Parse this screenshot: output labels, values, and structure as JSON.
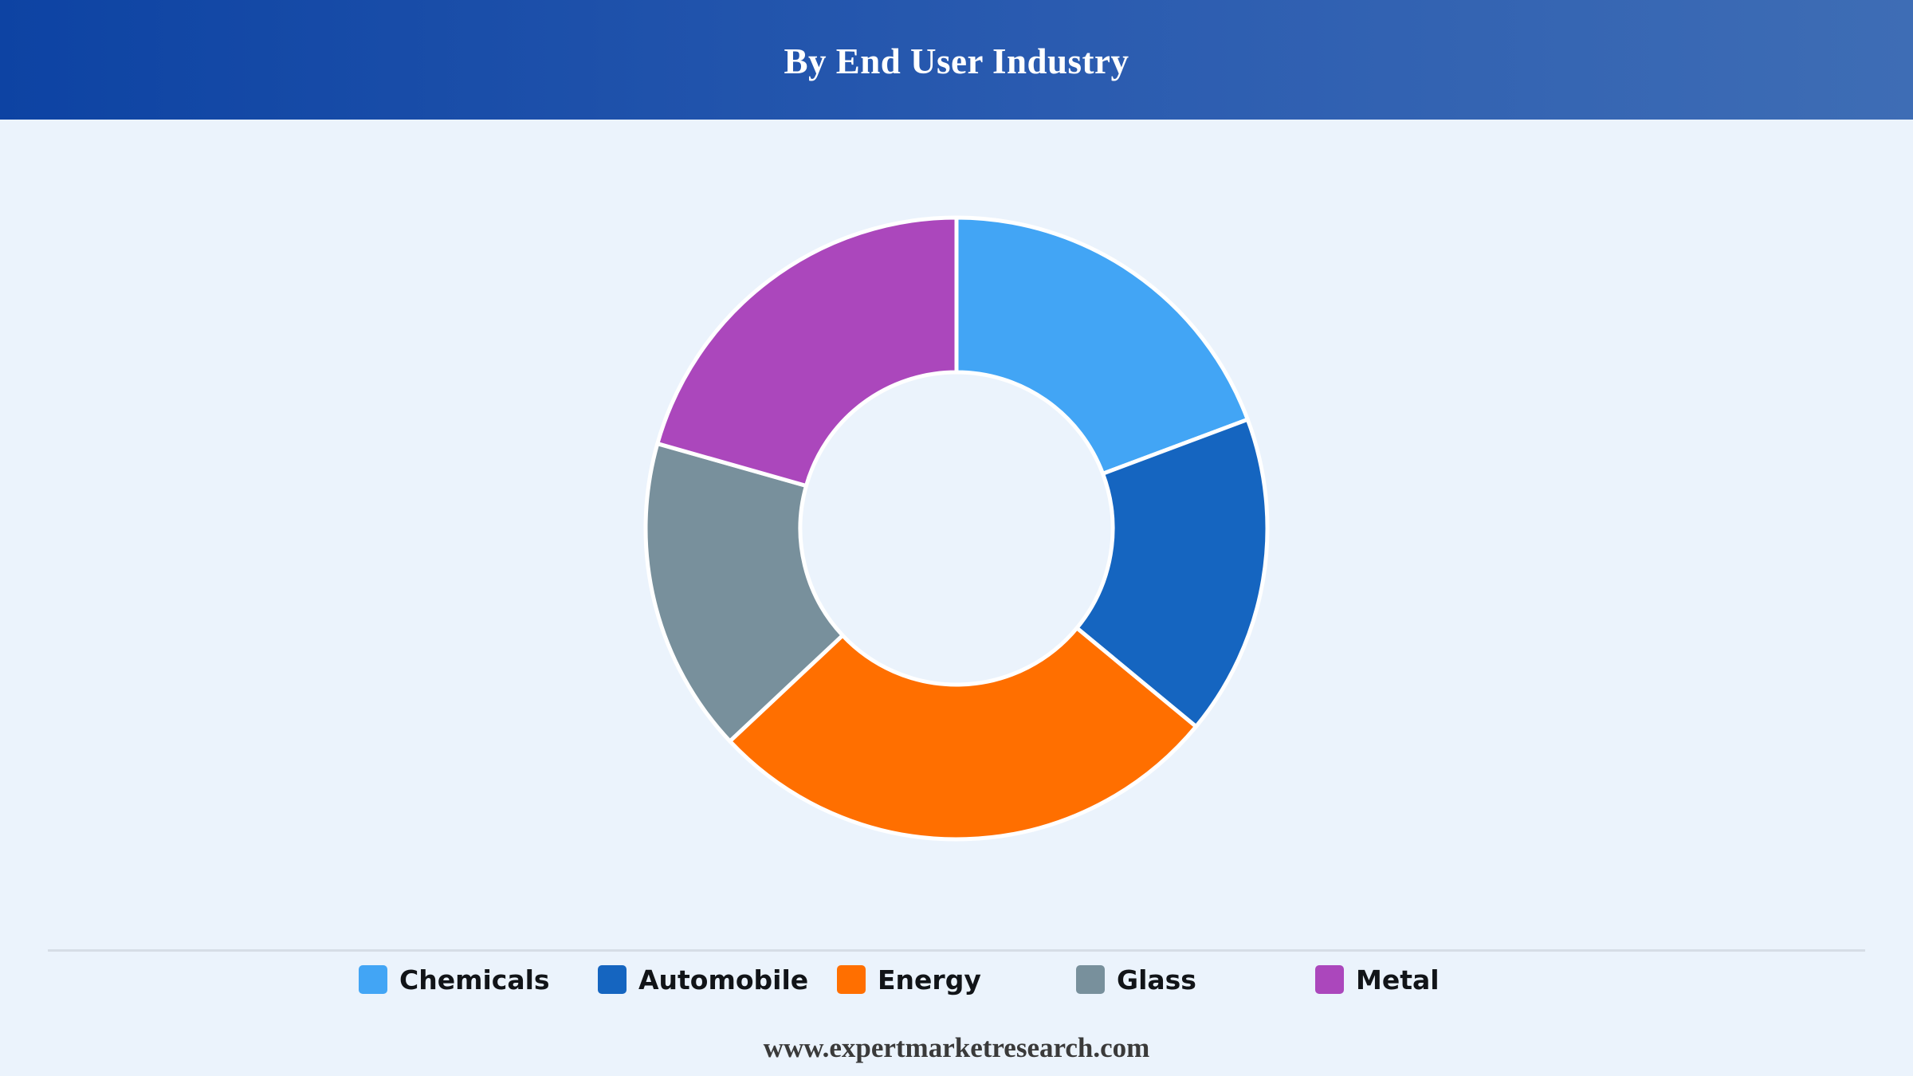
{
  "header": {
    "title": "By End User Industry"
  },
  "chart_data": {
    "type": "pie",
    "variant": "donut",
    "title": "By End User Industry",
    "slices": [
      {
        "label": "Chemicals",
        "value": 19.3,
        "color": "#42a5f5"
      },
      {
        "label": "Automobile",
        "value": 16.7,
        "color": "#1565c0"
      },
      {
        "label": "Energy",
        "value": 27.0,
        "color": "#ff6f00"
      },
      {
        "label": "Glass",
        "value": 16.4,
        "color": "#78909c"
      },
      {
        "label": "Metal",
        "value": 20.6,
        "color": "#ab47bc"
      }
    ],
    "legend_position": "bottom",
    "start_angle": "top",
    "direction": "clockwise"
  },
  "legend": {
    "items": [
      {
        "label": "Chemicals",
        "color": "#42a5f5"
      },
      {
        "label": "Automobile",
        "color": "#1565c0"
      },
      {
        "label": "Energy",
        "color": "#ff6f00"
      },
      {
        "label": "Glass",
        "color": "#78909c"
      },
      {
        "label": "Metal",
        "color": "#ab47bc"
      }
    ]
  },
  "footer": {
    "text": "www.expertmarketresearch.com"
  },
  "colors": {
    "header_start": "#0d43a3",
    "header_end": "#3e6db5",
    "background": "#ebf3fc"
  }
}
